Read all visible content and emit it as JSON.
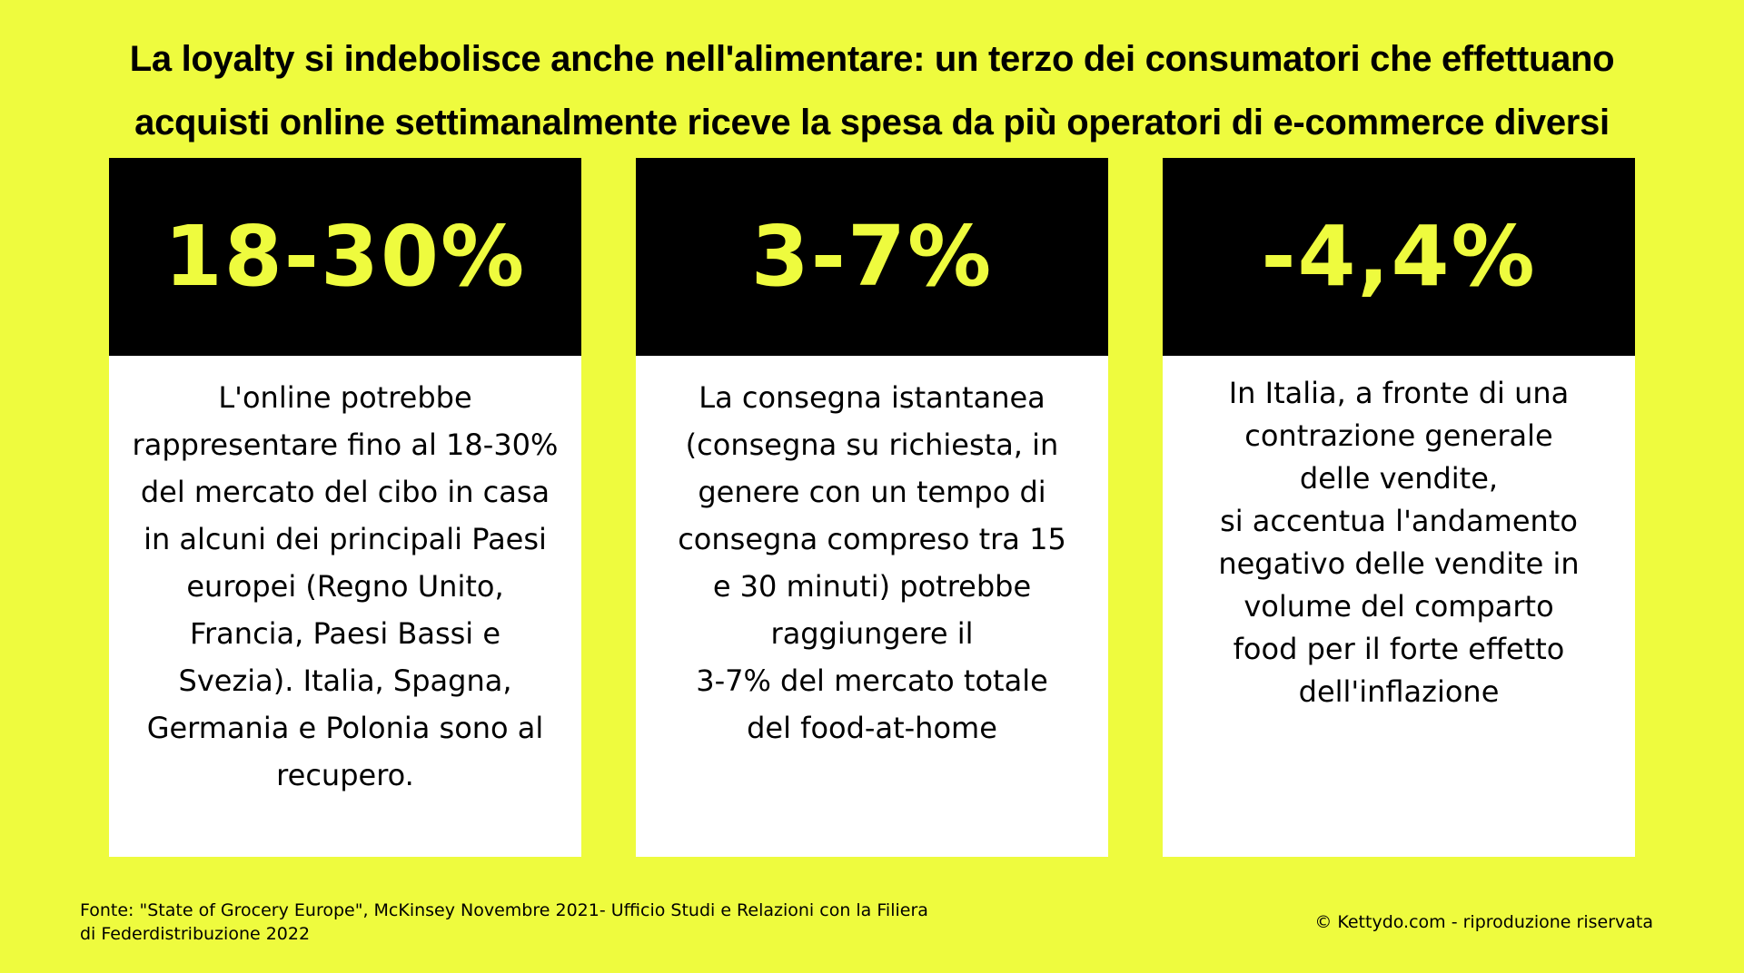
{
  "title": {
    "line1": "La loyalty si indebolisce anche nell'alimentare: un terzo dei consumatori che effettuano",
    "line2": "acquisti online settimanalmente riceve la spesa da più operatori di e-commerce diversi"
  },
  "colors": {
    "background": "#EEFB3E",
    "accent": "#EEFB3E",
    "header_background": "#000000",
    "card_background": "#FFFFFF"
  },
  "cards": [
    {
      "value": "18-30%",
      "lines": [
        "L'online potrebbe",
        "rappresentare fino al 18-30%",
        "del mercato del cibo in casa",
        "in alcuni dei principali Paesi",
        "europei (Regno Unito,",
        "Francia, Paesi Bassi e",
        "Svezia). Italia, Spagna,",
        "Germania e Polonia sono al",
        "recupero."
      ]
    },
    {
      "value": "3-7%",
      "lines": [
        "La consegna istantanea",
        "(consegna su richiesta, in",
        "genere con un tempo di",
        "consegna compreso tra 15",
        "e 30 minuti) potrebbe",
        "raggiungere il",
        "3-7% del mercato totale",
        "del food-at-home"
      ]
    },
    {
      "value": "-4,4%",
      "lines": [
        "In Italia, a fronte di una",
        "contrazione generale",
        "delle vendite,",
        "si accentua l'andamento",
        "negativo delle vendite in",
        "volume del comparto",
        "food per il forte effetto",
        "dell'inflazione"
      ]
    }
  ],
  "footer": {
    "source_line1": "Fonte: \"State of Grocery Europe\", McKinsey Novembre 2021- Ufficio Studi e Relazioni con la Filiera",
    "source_line2": "di Federdistribuzione 2022",
    "copyright": "© Kettydo.com - riproduzione riservata"
  }
}
